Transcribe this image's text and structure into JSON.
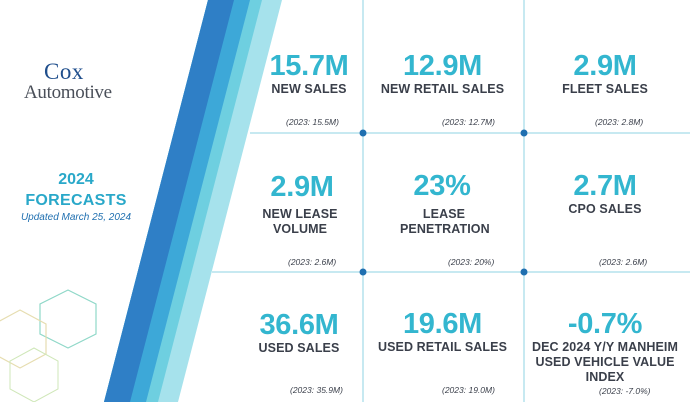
{
  "logo": {
    "line1": "Cox",
    "line2": "Automotive"
  },
  "forecast": {
    "year": "2024",
    "title": "FORECASTS",
    "updated": "Updated March 25, 2024"
  },
  "colors": {
    "accent": "#33b6cf",
    "dark_text": "#3a3f4a",
    "brand_blue": "#1f4e8c",
    "grid_line": "#8fd3e3",
    "dot": "#1f6fb0"
  },
  "metrics": [
    {
      "value": "15.7M",
      "label": "NEW SALES",
      "prior": "(2023: 15.5M)"
    },
    {
      "value": "12.9M",
      "label": "NEW RETAIL SALES",
      "prior": "(2023: 12.7M)"
    },
    {
      "value": "2.9M",
      "label": "FLEET SALES",
      "prior": "(2023: 2.8M)"
    },
    {
      "value": "2.9M",
      "label": "NEW LEASE VOLUME",
      "prior": "(2023: 2.6M)"
    },
    {
      "value": "23%",
      "label": "LEASE PENETRATION",
      "prior": "(2023: 20%)"
    },
    {
      "value": "2.7M",
      "label": "CPO SALES",
      "prior": "(2023:  2.6M)"
    },
    {
      "value": "36.6M",
      "label": "USED SALES",
      "prior": "(2023: 35.9M)"
    },
    {
      "value": "19.6M",
      "label": "USED RETAIL SALES",
      "prior": "(2023: 19.0M)"
    },
    {
      "value": "-0.7%",
      "label": "DEC 2024 Y/Y MANHEIM USED VEHICLE VALUE INDEX",
      "prior": "(2023: -7.0%)"
    }
  ]
}
